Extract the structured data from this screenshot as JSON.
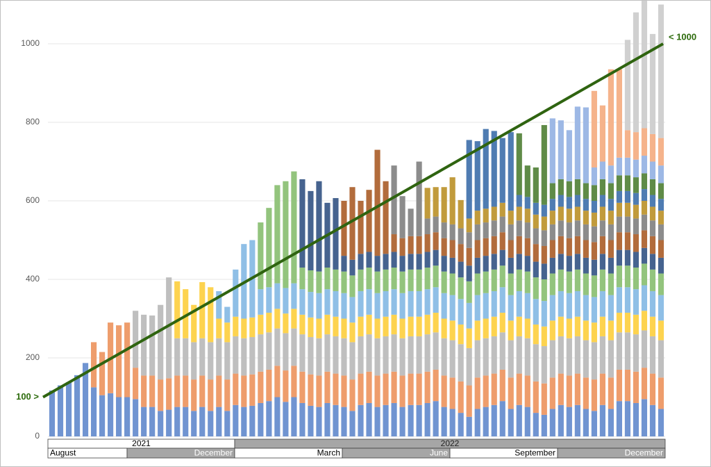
{
  "chart_data": {
    "type": "bar",
    "stacked": true,
    "grid": true,
    "ylim": [
      0,
      1100
    ],
    "yticks": [
      0,
      200,
      400,
      600,
      800,
      1000
    ],
    "categories": [
      null,
      null,
      null,
      null,
      null,
      null,
      null,
      null,
      null,
      null,
      null,
      null,
      null,
      null,
      null,
      null,
      null,
      null,
      null,
      null,
      null,
      null,
      null,
      null,
      null,
      null,
      null,
      null,
      null,
      null,
      null,
      null,
      null,
      null,
      null,
      null,
      null,
      null,
      null,
      null,
      null,
      null,
      null,
      null,
      null,
      null,
      null,
      null,
      null,
      null,
      null,
      null,
      null,
      null,
      null,
      null,
      null,
      null,
      null,
      null,
      null,
      null,
      null,
      null,
      null,
      null,
      null,
      null,
      null,
      null,
      null,
      null,
      null,
      null
    ],
    "x_years": [
      "2021",
      "2022"
    ],
    "x_months": [
      "August",
      "December",
      "March",
      "June",
      "September",
      "December"
    ],
    "trend": {
      "start": 100,
      "end": 1000,
      "start_label": "100 >",
      "end_label": "< 1000",
      "color": "#2f6410"
    },
    "series": [
      {
        "color": "#7094d1",
        "values": [
          117,
          130,
          138,
          156,
          187,
          125,
          105,
          110,
          100,
          100,
          95,
          75,
          75,
          65,
          68,
          75,
          75,
          65,
          75,
          65,
          75,
          65,
          80,
          75,
          78,
          85,
          90,
          100,
          88,
          100,
          85,
          78,
          75,
          85,
          80,
          75,
          65,
          80,
          85,
          75,
          80,
          85,
          75,
          80,
          80,
          85,
          90,
          75,
          70,
          60,
          50,
          70,
          75,
          80,
          90,
          70,
          80,
          75,
          60,
          55,
          70,
          80,
          75,
          80,
          70,
          65,
          80,
          70,
          90,
          90,
          85,
          95,
          80,
          70
        ]
      },
      {
        "color": "#ee9d6c",
        "values": [
          null,
          null,
          null,
          null,
          null,
          115,
          110,
          180,
          183,
          190,
          80,
          80,
          80,
          80,
          80,
          80,
          80,
          80,
          80,
          80,
          80,
          80,
          80,
          80,
          80,
          80,
          80,
          80,
          80,
          80,
          80,
          80,
          80,
          80,
          80,
          80,
          80,
          80,
          80,
          80,
          80,
          80,
          80,
          80,
          80,
          80,
          80,
          80,
          80,
          80,
          80,
          80,
          80,
          80,
          80,
          80,
          80,
          80,
          80,
          80,
          80,
          80,
          80,
          80,
          80,
          80,
          80,
          80,
          80,
          80,
          80,
          80,
          80,
          80
        ]
      },
      {
        "color": "#bfbfbf",
        "values": [
          null,
          null,
          null,
          null,
          null,
          null,
          null,
          null,
          null,
          null,
          145,
          155,
          153,
          190,
          257,
          95,
          95,
          95,
          95,
          95,
          95,
          95,
          95,
          95,
          95,
          95,
          95,
          95,
          95,
          95,
          95,
          95,
          95,
          95,
          95,
          95,
          95,
          95,
          95,
          95,
          95,
          95,
          95,
          95,
          95,
          95,
          95,
          95,
          95,
          95,
          95,
          95,
          95,
          95,
          95,
          95,
          95,
          95,
          95,
          95,
          95,
          95,
          95,
          95,
          95,
          95,
          95,
          95,
          95,
          95,
          95,
          95,
          95,
          95
        ]
      },
      {
        "color": "#fdd34f",
        "values": [
          null,
          null,
          null,
          null,
          null,
          null,
          null,
          null,
          null,
          null,
          null,
          null,
          null,
          null,
          null,
          145,
          125,
          95,
          143,
          140,
          50,
          50,
          50,
          50,
          50,
          50,
          50,
          50,
          50,
          50,
          50,
          50,
          50,
          50,
          50,
          50,
          50,
          50,
          50,
          50,
          50,
          50,
          50,
          50,
          50,
          50,
          50,
          50,
          50,
          50,
          50,
          50,
          50,
          50,
          50,
          50,
          50,
          50,
          50,
          50,
          50,
          50,
          50,
          50,
          50,
          50,
          50,
          50,
          50,
          50,
          50,
          50,
          50,
          50
        ]
      },
      {
        "color": "#8fbfe6",
        "values": [
          null,
          null,
          null,
          null,
          null,
          null,
          null,
          null,
          null,
          null,
          null,
          null,
          null,
          null,
          null,
          null,
          null,
          null,
          null,
          null,
          70,
          40,
          120,
          190,
          197,
          65,
          65,
          65,
          65,
          65,
          65,
          65,
          65,
          65,
          65,
          65,
          65,
          65,
          65,
          65,
          65,
          65,
          65,
          65,
          65,
          65,
          65,
          65,
          65,
          65,
          65,
          65,
          65,
          65,
          65,
          65,
          65,
          65,
          65,
          65,
          65,
          65,
          65,
          65,
          65,
          65,
          65,
          65,
          65,
          65,
          65,
          65,
          65,
          65
        ]
      },
      {
        "color": "#93c47d",
        "values": [
          null,
          null,
          null,
          null,
          null,
          null,
          null,
          null,
          null,
          null,
          null,
          null,
          null,
          null,
          null,
          null,
          null,
          null,
          null,
          null,
          null,
          null,
          null,
          null,
          null,
          170,
          202,
          250,
          272,
          285,
          55,
          55,
          55,
          55,
          55,
          55,
          55,
          55,
          55,
          55,
          55,
          55,
          55,
          55,
          55,
          55,
          55,
          55,
          55,
          55,
          55,
          55,
          55,
          55,
          55,
          55,
          55,
          55,
          55,
          55,
          55,
          55,
          55,
          55,
          55,
          55,
          55,
          55,
          55,
          55,
          55,
          55,
          55,
          55
        ]
      },
      {
        "color": "#46638f",
        "values": [
          null,
          null,
          null,
          null,
          null,
          null,
          null,
          null,
          null,
          null,
          null,
          null,
          null,
          null,
          null,
          null,
          null,
          null,
          null,
          null,
          null,
          null,
          null,
          null,
          null,
          null,
          null,
          null,
          null,
          null,
          225,
          202,
          230,
          165,
          182,
          40,
          40,
          40,
          40,
          40,
          40,
          40,
          40,
          40,
          40,
          40,
          40,
          40,
          40,
          40,
          40,
          40,
          40,
          40,
          40,
          40,
          40,
          40,
          40,
          40,
          40,
          40,
          40,
          40,
          40,
          40,
          40,
          40,
          40,
          40,
          40,
          40,
          40,
          40
        ]
      },
      {
        "color": "#b26c3c",
        "values": [
          null,
          null,
          null,
          null,
          null,
          null,
          null,
          null,
          null,
          null,
          null,
          null,
          null,
          null,
          null,
          null,
          null,
          null,
          null,
          null,
          null,
          null,
          null,
          null,
          null,
          null,
          null,
          null,
          null,
          null,
          null,
          null,
          null,
          null,
          null,
          140,
          185,
          135,
          158,
          270,
          185,
          45,
          45,
          45,
          45,
          45,
          45,
          45,
          45,
          45,
          45,
          45,
          45,
          45,
          45,
          45,
          45,
          45,
          45,
          45,
          45,
          45,
          45,
          45,
          45,
          45,
          45,
          45,
          45,
          45,
          45,
          45,
          45,
          45
        ]
      },
      {
        "color": "#8c8c8c",
        "values": [
          null,
          null,
          null,
          null,
          null,
          null,
          null,
          null,
          null,
          null,
          null,
          null,
          null,
          null,
          null,
          null,
          null,
          null,
          null,
          null,
          null,
          null,
          null,
          null,
          null,
          null,
          null,
          null,
          null,
          null,
          null,
          null,
          null,
          null,
          null,
          null,
          null,
          null,
          null,
          null,
          null,
          175,
          107,
          70,
          190,
          40,
          40,
          40,
          40,
          40,
          40,
          40,
          40,
          40,
          40,
          40,
          40,
          40,
          40,
          40,
          40,
          40,
          40,
          40,
          40,
          40,
          40,
          40,
          40,
          40,
          40,
          40,
          40,
          40
        ]
      },
      {
        "color": "#c19b3c",
        "values": [
          null,
          null,
          null,
          null,
          null,
          null,
          null,
          null,
          null,
          null,
          null,
          null,
          null,
          null,
          null,
          null,
          null,
          null,
          null,
          null,
          null,
          null,
          null,
          null,
          null,
          null,
          null,
          null,
          null,
          null,
          null,
          null,
          null,
          null,
          null,
          null,
          null,
          null,
          null,
          null,
          null,
          null,
          null,
          null,
          null,
          78,
          75,
          90,
          120,
          72,
          35,
          35,
          35,
          35,
          35,
          35,
          35,
          35,
          35,
          35,
          35,
          35,
          35,
          35,
          35,
          35,
          35,
          35,
          35,
          35,
          35,
          35,
          35,
          35
        ]
      },
      {
        "color": "#4f7cb2",
        "values": [
          null,
          null,
          null,
          null,
          null,
          null,
          null,
          null,
          null,
          null,
          null,
          null,
          null,
          null,
          null,
          null,
          null,
          null,
          null,
          null,
          null,
          null,
          null,
          null,
          null,
          null,
          null,
          null,
          null,
          null,
          null,
          null,
          null,
          null,
          null,
          null,
          null,
          null,
          null,
          null,
          null,
          null,
          null,
          null,
          null,
          null,
          null,
          null,
          null,
          null,
          200,
          177,
          203,
          193,
          165,
          200,
          30,
          30,
          30,
          30,
          30,
          30,
          30,
          30,
          30,
          30,
          30,
          30,
          30,
          30,
          30,
          30,
          30,
          30
        ]
      },
      {
        "color": "#5f8b47",
        "values": [
          null,
          null,
          null,
          null,
          null,
          null,
          null,
          null,
          null,
          null,
          null,
          null,
          null,
          null,
          null,
          null,
          null,
          null,
          null,
          null,
          null,
          null,
          null,
          null,
          null,
          null,
          null,
          null,
          null,
          null,
          null,
          null,
          null,
          null,
          null,
          null,
          null,
          null,
          null,
          null,
          null,
          null,
          null,
          null,
          null,
          null,
          null,
          null,
          null,
          null,
          null,
          null,
          null,
          null,
          null,
          null,
          157,
          80,
          90,
          203,
          40,
          40,
          40,
          40,
          40,
          40,
          40,
          40,
          40,
          40,
          40,
          40,
          40,
          40
        ]
      },
      {
        "color": "#9db8e5",
        "values": [
          null,
          null,
          null,
          null,
          null,
          null,
          null,
          null,
          null,
          null,
          null,
          null,
          null,
          null,
          null,
          null,
          null,
          null,
          null,
          null,
          null,
          null,
          null,
          null,
          null,
          null,
          null,
          null,
          null,
          null,
          null,
          null,
          null,
          null,
          null,
          null,
          null,
          null,
          null,
          null,
          null,
          null,
          null,
          null,
          null,
          null,
          null,
          null,
          null,
          null,
          null,
          null,
          null,
          null,
          null,
          null,
          null,
          null,
          null,
          null,
          165,
          150,
          130,
          185,
          193,
          45,
          45,
          45,
          45,
          45,
          45,
          45,
          45,
          45
        ]
      },
      {
        "color": "#f5b38b",
        "values": [
          null,
          null,
          null,
          null,
          null,
          null,
          null,
          null,
          null,
          null,
          null,
          null,
          null,
          null,
          null,
          null,
          null,
          null,
          null,
          null,
          null,
          null,
          null,
          null,
          null,
          null,
          null,
          null,
          null,
          null,
          null,
          null,
          null,
          null,
          null,
          null,
          null,
          null,
          null,
          null,
          null,
          null,
          null,
          null,
          null,
          null,
          null,
          null,
          null,
          null,
          null,
          null,
          null,
          null,
          null,
          null,
          null,
          null,
          null,
          null,
          null,
          null,
          null,
          null,
          null,
          195,
          143,
          245,
          225,
          70,
          70,
          70,
          70,
          70
        ]
      },
      {
        "color": "#d0d0d0",
        "values": [
          null,
          null,
          null,
          null,
          null,
          null,
          null,
          null,
          null,
          null,
          null,
          null,
          null,
          null,
          null,
          null,
          null,
          null,
          null,
          null,
          null,
          null,
          null,
          null,
          null,
          null,
          null,
          null,
          null,
          null,
          null,
          null,
          null,
          null,
          null,
          null,
          null,
          null,
          null,
          null,
          null,
          null,
          null,
          null,
          null,
          null,
          null,
          null,
          null,
          null,
          null,
          null,
          null,
          null,
          null,
          null,
          null,
          null,
          null,
          null,
          null,
          null,
          null,
          null,
          null,
          null,
          null,
          null,
          null,
          230,
          305,
          325,
          255,
          340
        ]
      }
    ]
  }
}
